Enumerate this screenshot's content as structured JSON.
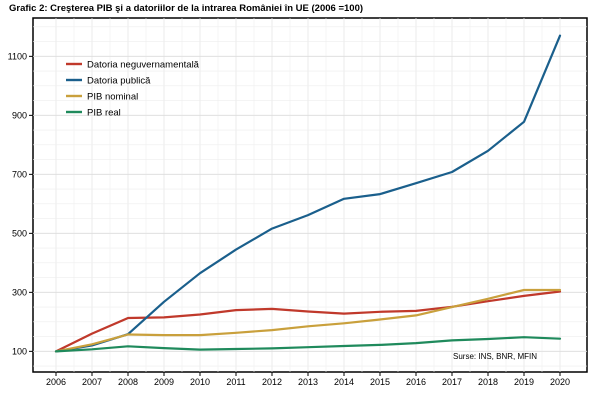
{
  "title": "Grafic 2: Creşterea PIB şi a datoriilor de la intrarea României în UE (2006 =100)",
  "source": "Surse: INS, BNR, MFIN",
  "chart_data": {
    "type": "line",
    "title": "Grafic 2: Creşterea PIB şi a datoriilor de la intrarea României în UE (2006 =100)",
    "xlabel": "",
    "ylabel": "",
    "x": [
      "2006",
      "2007",
      "2008",
      "2009",
      "2010",
      "2011",
      "2012",
      "2013",
      "2014",
      "2015",
      "2016",
      "2017",
      "2018",
      "2019",
      "2020"
    ],
    "ylim": [
      30,
      1230
    ],
    "yticks": [
      100,
      300,
      500,
      700,
      900,
      1100
    ],
    "grid": true,
    "legend": "top-left",
    "series": [
      {
        "name": "Datoria neguvernamentală",
        "color": "#c0392b",
        "values": [
          100,
          160,
          213,
          215,
          225,
          240,
          244,
          235,
          228,
          234,
          237,
          251,
          270,
          288,
          303
        ]
      },
      {
        "name": "Datoria publică",
        "color": "#1a5f8c",
        "values": [
          100,
          120,
          158,
          268,
          365,
          445,
          516,
          562,
          617,
          633,
          670,
          708,
          780,
          878,
          1170
        ]
      },
      {
        "name": "PIB nominal",
        "color": "#c9a03c",
        "values": [
          100,
          124,
          157,
          155,
          155,
          163,
          172,
          185,
          195,
          208,
          222,
          250,
          278,
          308,
          308
        ]
      },
      {
        "name": "PIB real",
        "color": "#1f8a5c",
        "values": [
          100,
          107,
          117,
          111,
          106,
          108,
          110,
          114,
          118,
          122,
          128,
          137,
          142,
          148,
          143
        ]
      }
    ]
  }
}
